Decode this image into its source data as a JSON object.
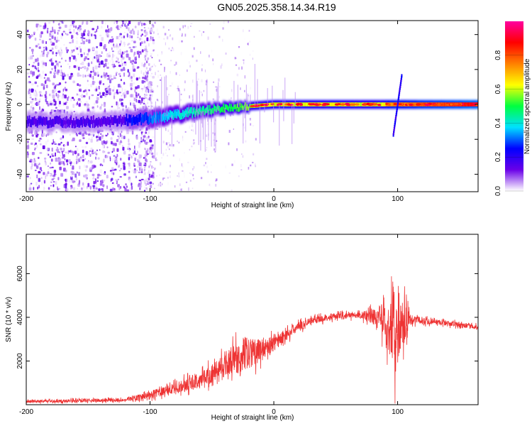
{
  "title": "GN05.2025.358.14.34.R19",
  "chart_data": [
    {
      "type": "heatmap",
      "title": "GN05.2025.358.14.34.R19",
      "xlabel": "Height of straight line (km)",
      "ylabel": "Frequency (Hz)",
      "xlim": [
        -200,
        165
      ],
      "ylim": [
        -50,
        48
      ],
      "xticks": [
        -200,
        -100,
        0,
        100
      ],
      "yticks": [
        -40,
        -20,
        0,
        20,
        40
      ],
      "colorbar": {
        "label": "Normalized spectral amplitude",
        "range": [
          0.0,
          1.0
        ],
        "ticks": [
          0.0,
          0.2,
          0.4,
          0.6,
          0.8
        ],
        "colormap": [
          "#ffffff",
          "#6a00e8",
          "#0000ff",
          "#00e0ff",
          "#00ff40",
          "#ffff00",
          "#ff8000",
          "#ff0000",
          "#ff00a0"
        ]
      },
      "features": {
        "noise_region_x": [
          -200,
          -100
        ],
        "trace": [
          {
            "x": -200,
            "f": -10
          },
          {
            "x": -150,
            "f": -10
          },
          {
            "x": -120,
            "f": -9
          },
          {
            "x": -100,
            "f": -8
          },
          {
            "x": -80,
            "f": -6
          },
          {
            "x": -60,
            "f": -4
          },
          {
            "x": -40,
            "f": -2
          },
          {
            "x": -20,
            "f": -1
          },
          {
            "x": 0,
            "f": 0
          },
          {
            "x": 20,
            "f": 0
          },
          {
            "x": 60,
            "f": 0
          },
          {
            "x": 100,
            "f": 0
          },
          {
            "x": 165,
            "f": 0
          }
        ],
        "spike_x": 102,
        "spike_f_range": [
          -18,
          17
        ]
      }
    },
    {
      "type": "line",
      "xlabel": "Height of straight line (km)",
      "ylabel": "SNR (10 * v/v)",
      "xlim": [
        -200,
        165
      ],
      "ylim": [
        0,
        7800
      ],
      "xticks": [
        -200,
        -100,
        0,
        100
      ],
      "yticks": [
        2000,
        4000,
        6000
      ],
      "series": [
        {
          "name": "SNR",
          "color": "#ee3333",
          "envelope": [
            {
              "x": -200,
              "mean": 150,
              "noise": 120
            },
            {
              "x": -120,
              "mean": 220,
              "noise": 150
            },
            {
              "x": -100,
              "mean": 450,
              "noise": 300
            },
            {
              "x": -80,
              "mean": 750,
              "noise": 450
            },
            {
              "x": -60,
              "mean": 1100,
              "noise": 650
            },
            {
              "x": -40,
              "mean": 1800,
              "noise": 900
            },
            {
              "x": -25,
              "mean": 2300,
              "noise": 1500
            },
            {
              "x": -10,
              "mean": 2500,
              "noise": 900
            },
            {
              "x": 0,
              "mean": 2800,
              "noise": 650
            },
            {
              "x": 15,
              "mean": 3400,
              "noise": 450
            },
            {
              "x": 30,
              "mean": 3850,
              "noise": 300
            },
            {
              "x": 50,
              "mean": 4050,
              "noise": 250
            },
            {
              "x": 70,
              "mean": 4100,
              "noise": 250
            },
            {
              "x": 85,
              "mean": 4000,
              "noise": 1000
            },
            {
              "x": 92,
              "mean": 3500,
              "noise": 2200
            },
            {
              "x": 98,
              "mean": 3600,
              "noise": 4000
            },
            {
              "x": 104,
              "mean": 3800,
              "noise": 2200
            },
            {
              "x": 110,
              "mean": 3900,
              "noise": 400
            },
            {
              "x": 130,
              "mean": 3800,
              "noise": 220
            },
            {
              "x": 165,
              "mean": 3550,
              "noise": 200
            }
          ]
        }
      ]
    }
  ]
}
